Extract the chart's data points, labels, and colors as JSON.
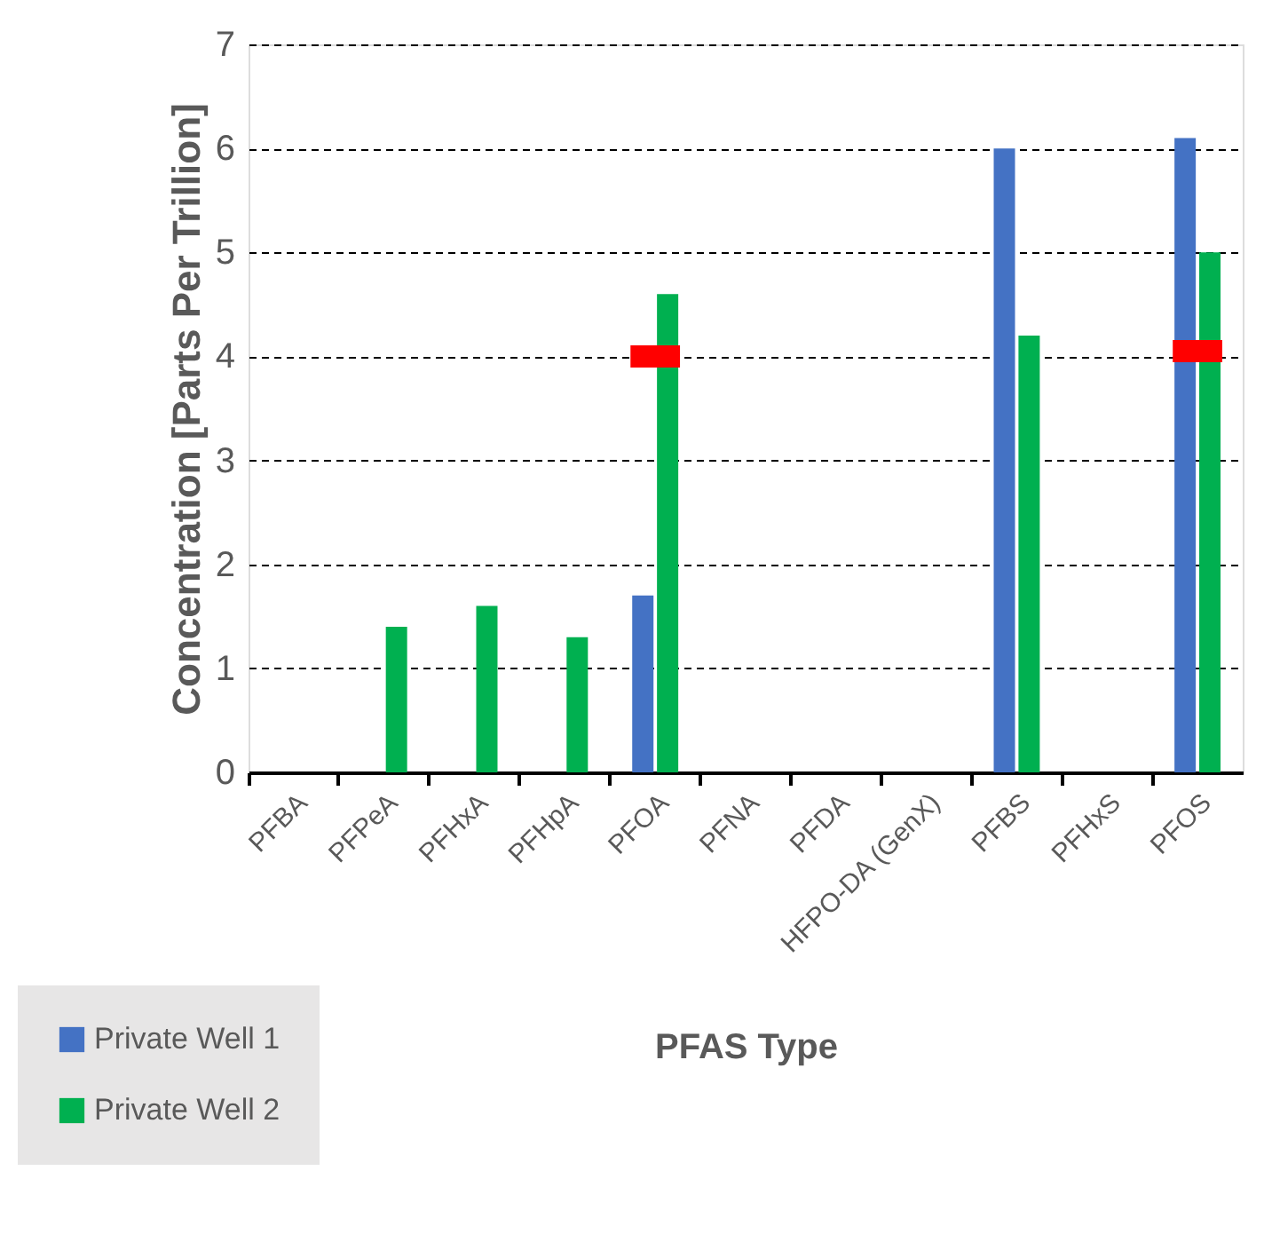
{
  "chart_data": {
    "type": "bar",
    "xlabel": "PFAS Type",
    "ylabel": "Concentration [Parts Per Trillion]",
    "categories": [
      "PFBA",
      "PFPeA",
      "PFHxA",
      "PFHpA",
      "PFOA",
      "PFNA",
      "PFDA",
      "HFPO-DA (GenX)",
      "PFBS",
      "PFHxS",
      "PFOS"
    ],
    "series": [
      {
        "name": "Private Well 1",
        "color": "#4472c4",
        "values": [
          null,
          null,
          null,
          null,
          1.7,
          null,
          null,
          null,
          6.0,
          null,
          6.1
        ]
      },
      {
        "name": "Private Well 2",
        "color": "#00b050",
        "values": [
          null,
          1.4,
          1.6,
          1.3,
          4.6,
          null,
          null,
          null,
          4.2,
          null,
          5.0
        ]
      },
      {
        "type": "scatter",
        "color": "#ff0000",
        "values": [
          null,
          null,
          null,
          null,
          4.0,
          null,
          null,
          null,
          null,
          null,
          4.05
        ]
      }
    ],
    "ylim": [
      0,
      7
    ],
    "yticks": [
      0,
      1,
      2,
      3,
      4,
      5,
      6,
      7
    ],
    "grid": "y",
    "legend": "bottom left"
  }
}
